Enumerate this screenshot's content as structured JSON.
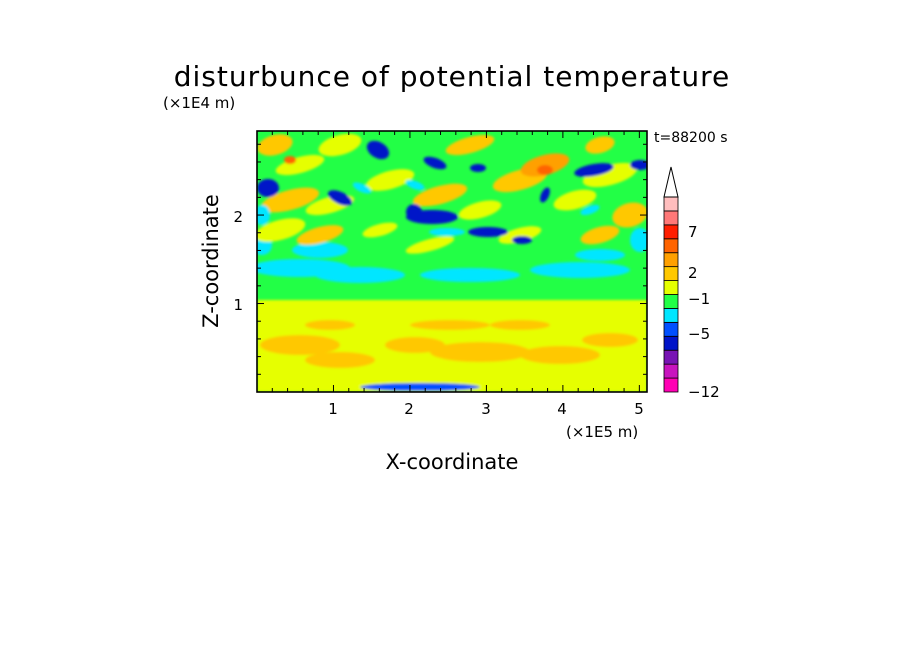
{
  "chart_data": {
    "type": "heatmap",
    "title": "disturbunce of potential temperature",
    "xlabel": "X-coordinate",
    "ylabel": "Z-coordinate",
    "x_unit": "(×1E5 m)",
    "y_unit": "(×1E4 m)",
    "time_label": "t=88200 s",
    "xlim": [
      0,
      5.1
    ],
    "ylim": [
      0,
      2.95
    ],
    "x_ticks": [
      "1",
      "2",
      "3",
      "4",
      "5"
    ],
    "y_ticks": [
      "1",
      "2"
    ],
    "x_tick_values": [
      1,
      2,
      3,
      4,
      5
    ],
    "y_tick_values": [
      1,
      2
    ],
    "colorbar": {
      "labels": [
        "7",
        "2",
        "−1",
        "−5",
        "−12"
      ],
      "label_values": [
        7,
        2,
        -1,
        -5,
        -12
      ],
      "extend": "max",
      "colors": [
        "#ff00b4",
        "#c814be",
        "#7814b4",
        "#0014c8",
        "#0050ff",
        "#00e6ff",
        "#22ff46",
        "#e6ff00",
        "#ffc800",
        "#ffa000",
        "#ff6400",
        "#ff1e00",
        "#ff7878",
        "#ffbebe"
      ]
    }
  }
}
